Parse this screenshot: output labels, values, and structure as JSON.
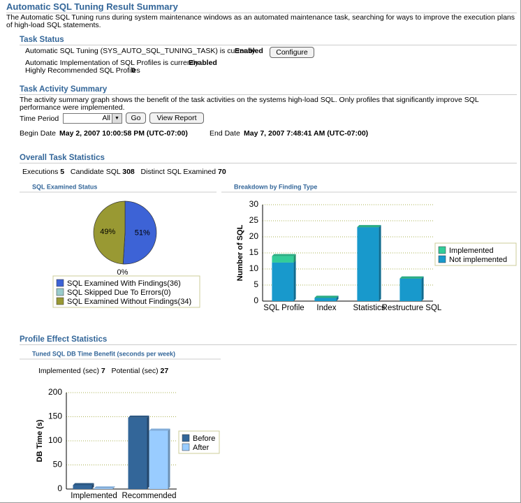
{
  "header": {
    "title": "Automatic SQL Tuning Result Summary",
    "description": "The Automatic SQL Tuning runs during system maintenance windows as an automated maintenance task, searching for ways to improve the execution plans of high-load SQL statements."
  },
  "task_status": {
    "heading": "Task Status",
    "auto_tuning_label": "Automatic SQL Tuning (SYS_AUTO_SQL_TUNING_TASK) is currently",
    "auto_tuning_value": "Enabled",
    "configure_button": "Configure",
    "auto_impl_label": "Automatic Implementation of SQL Profiles is currently",
    "auto_impl_value": "Enabled",
    "highly_recommended_label": "Highly Recommended SQL Profiles",
    "highly_recommended_value": 0
  },
  "task_activity": {
    "heading": "Task Activity Summary",
    "description": "The activity summary graph shows the benefit of the task activities on the systems high-load SQL. Only profiles that significantly improve SQL performance were implemented.",
    "time_period_label": "Time Period",
    "time_period_value": "All",
    "go_button": "Go",
    "view_report_button": "View Report",
    "begin_date_label": "Begin Date",
    "begin_date": "May 2, 2007 10:00:58 PM (UTC-07:00)",
    "end_date_label": "End Date",
    "end_date": "May 7, 2007 7:48:41 AM (UTC-07:00)"
  },
  "overall_stats": {
    "heading": "Overall Task Statistics",
    "executions_label": "Executions",
    "executions": 5,
    "candidate_label": "Candidate SQL",
    "candidate": 308,
    "distinct_label": "Distinct SQL Examined",
    "distinct": 70
  },
  "profile_effect": {
    "heading": "Profile Effect Statistics",
    "implemented_label": "Implemented (sec)",
    "implemented": 7,
    "potential_label": "Potential (sec)",
    "potential": 27
  },
  "chart_data": [
    {
      "type": "pie",
      "title": "SQL Examined Status",
      "categories": [
        "SQL Examined With Findings(36)",
        "SQL Skipped Due To Errors(0)",
        "SQL Examined Without Findings(34)"
      ],
      "values": [
        51,
        0,
        49
      ],
      "value_labels": [
        "51%",
        "0%",
        "49%"
      ],
      "colors": [
        "#3d63d6",
        "#99cccc",
        "#999933"
      ]
    },
    {
      "type": "bar",
      "stacked": true,
      "title": "Breakdown by Finding Type",
      "ylabel": "Number of SQL",
      "categories": [
        "SQL Profile",
        "Index",
        "Statistics",
        "Restructure SQL"
      ],
      "series": [
        {
          "name": "Not implemented",
          "color": "#1899cc",
          "values": [
            12,
            1,
            23,
            7
          ]
        },
        {
          "name": "Implemented",
          "color": "#33cc99",
          "values": [
            2,
            0,
            0,
            0
          ]
        }
      ],
      "ylim": [
        0,
        30
      ],
      "yticks": [
        0,
        5,
        10,
        15,
        20,
        25,
        30
      ],
      "grid": true,
      "legend": "right"
    },
    {
      "type": "bar",
      "stacked": false,
      "title": "Tuned SQL DB Time Benefit (seconds per week)",
      "ylabel": "DB Time (s)",
      "categories": [
        "Implemented",
        "Recommended"
      ],
      "series": [
        {
          "name": "Before",
          "color": "#336699",
          "values": [
            8,
            148
          ]
        },
        {
          "name": "After",
          "color": "#99ccff",
          "values": [
            1,
            121
          ]
        }
      ],
      "ylim": [
        0,
        200
      ],
      "yticks": [
        0,
        50,
        100,
        150,
        200
      ],
      "grid": true,
      "legend": "right"
    }
  ]
}
